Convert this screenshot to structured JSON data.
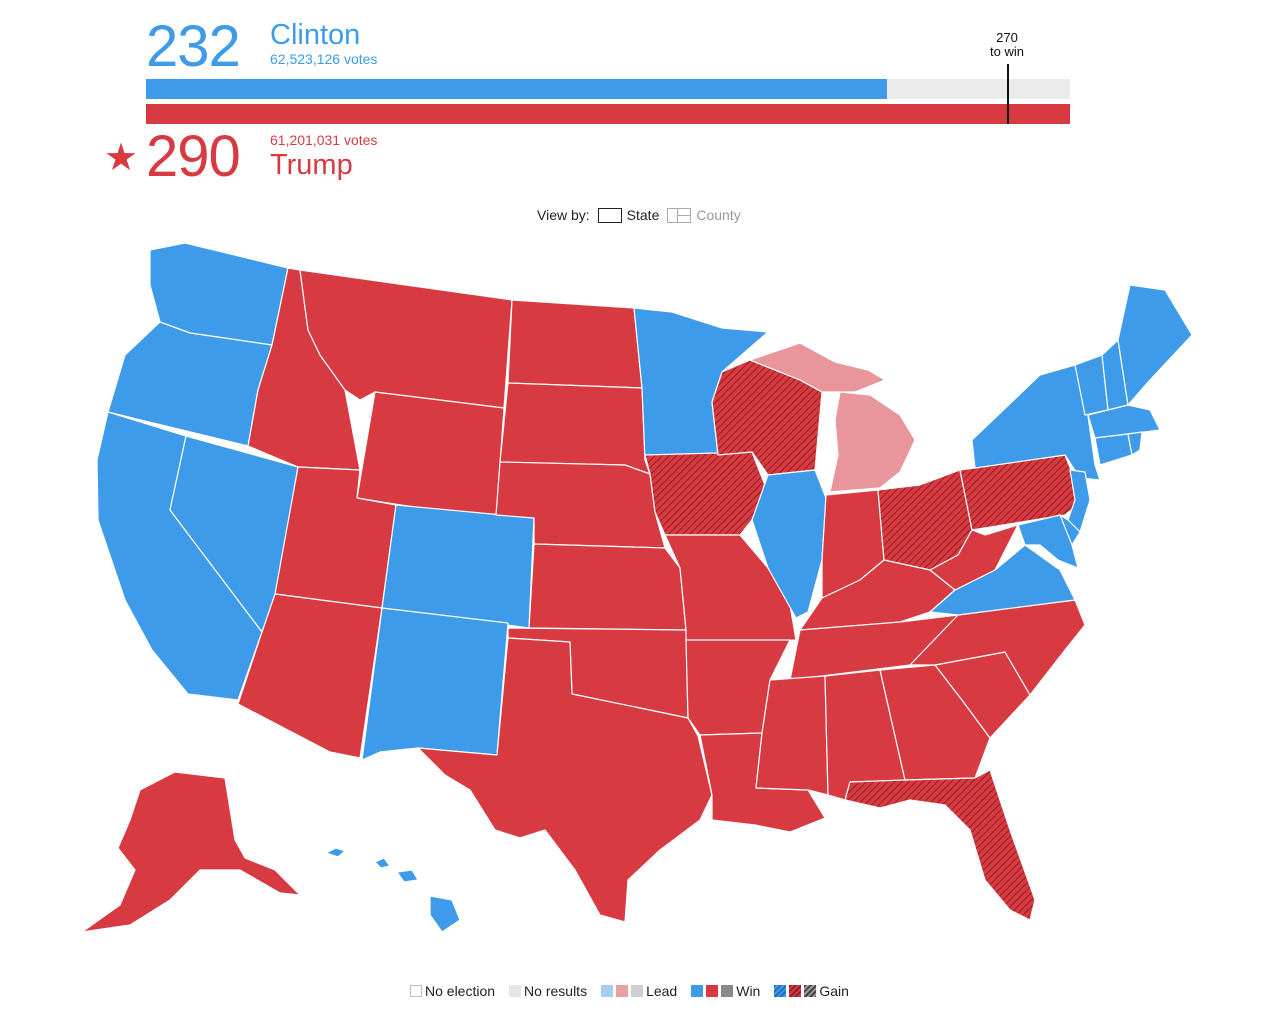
{
  "candidates": {
    "dem": {
      "electoral_votes": "232",
      "name": "Clinton",
      "popular_votes": "62,523,126 votes",
      "color": "#3d9be9",
      "ev_value": 232
    },
    "rep": {
      "electoral_votes": "290",
      "name": "Trump",
      "popular_votes": "61,201,031 votes",
      "color": "#d83a41",
      "ev_value": 290,
      "winner_icon": "star-icon"
    }
  },
  "threshold": {
    "value_text": "270",
    "label_text": "to win",
    "value": 270,
    "total": 538
  },
  "view_toggle": {
    "label": "View by:",
    "options": [
      "State",
      "County"
    ],
    "selected": "State"
  },
  "legend": {
    "items": [
      {
        "label": "No election",
        "swatches": [
          "empty"
        ]
      },
      {
        "label": "No results",
        "swatches": [
          "gray"
        ]
      },
      {
        "label": "Lead",
        "swatches": [
          "light-blue",
          "light-red",
          "light-gray"
        ]
      },
      {
        "label": "Win",
        "swatches": [
          "blue",
          "red",
          "gray"
        ]
      },
      {
        "label": "Gain",
        "swatches": [
          "hatched-blue",
          "hatched-red",
          "hatched-gray"
        ]
      }
    ]
  },
  "map": {
    "states": {
      "WA": "D",
      "OR": "D",
      "CA": "D",
      "NV": "D",
      "ID": "R",
      "MT": "R",
      "WY": "R",
      "UT": "R",
      "AZ": "R",
      "CO": "D",
      "NM": "D",
      "ND": "R",
      "SD": "R",
      "NE": "R",
      "KS": "R",
      "OK": "R",
      "TX": "R",
      "MN": "D",
      "IA": "R-gain",
      "MO": "R",
      "AR": "R",
      "LA": "R",
      "WI": "R-gain",
      "MI": "R-lead",
      "IL": "D",
      "IN": "R",
      "OH": "R-gain",
      "KY": "R",
      "TN": "R",
      "MS": "R",
      "AL": "R",
      "GA": "R",
      "FL": "R-gain",
      "SC": "R",
      "NC": "R",
      "VA": "D",
      "WV": "R",
      "PA": "R-gain",
      "NY": "D",
      "VT": "D",
      "NH": "D",
      "ME": "D",
      "MA": "D",
      "CT": "D",
      "RI": "D",
      "NJ": "D",
      "DE": "D",
      "MD": "D",
      "AK": "R",
      "HI": "D"
    }
  }
}
